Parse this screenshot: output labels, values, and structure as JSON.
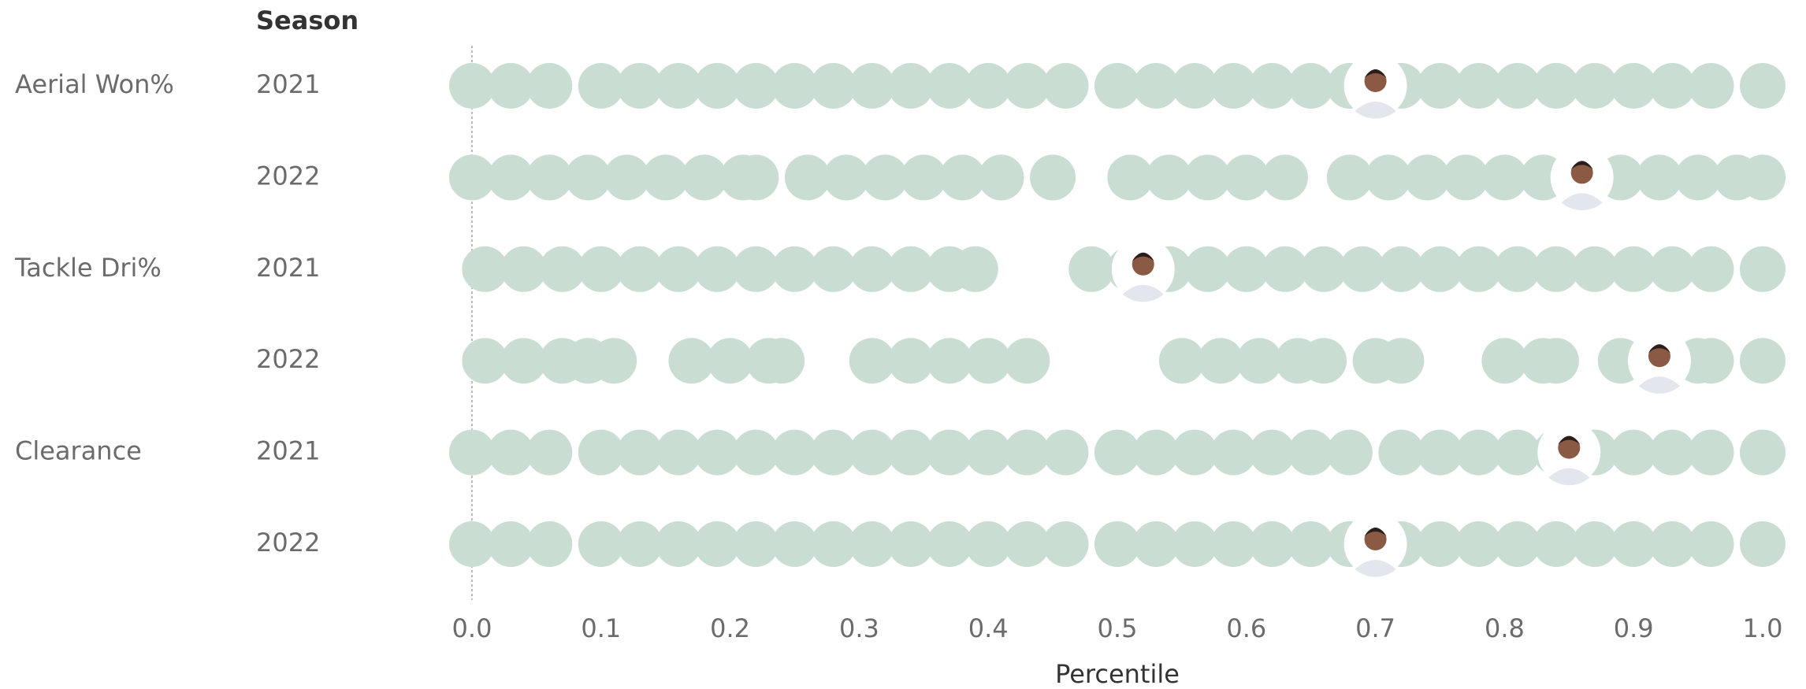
{
  "chart_data": {
    "type": "strip",
    "row_header": "Season",
    "xlabel": "Percentile",
    "dot_color": "#c9ddd2",
    "xlim": [
      0,
      1
    ],
    "xticks": [
      {
        "value": 0,
        "label": "0.0"
      },
      0.1,
      0.2,
      0.3,
      0.4,
      0.5,
      0.6,
      0.7,
      0.8,
      0.9,
      {
        "value": 1,
        "label": "1.0"
      }
    ],
    "groups": [
      {
        "name": "Aerial Won%",
        "seasons": [
          {
            "season": "2021",
            "player": 0.7,
            "values": [
              0,
              0.03,
              0.06,
              0.1,
              0.13,
              0.16,
              0.19,
              0.22,
              0.25,
              0.28,
              0.31,
              0.34,
              0.37,
              0.4,
              0.43,
              0.46,
              0.5,
              0.53,
              0.56,
              0.59,
              0.62,
              0.65,
              0.68,
              0.72,
              0.75,
              0.78,
              0.81,
              0.84,
              0.87,
              0.9,
              0.93,
              0.96,
              1.0
            ]
          },
          {
            "season": "2022",
            "player": 0.86,
            "values": [
              0,
              0.03,
              0.06,
              0.09,
              0.12,
              0.15,
              0.18,
              0.21,
              0.22,
              0.26,
              0.29,
              0.32,
              0.35,
              0.38,
              0.41,
              0.45,
              0.51,
              0.54,
              0.57,
              0.6,
              0.63,
              0.68,
              0.71,
              0.74,
              0.77,
              0.8,
              0.83,
              0.86,
              0.89,
              0.92,
              0.95,
              0.98,
              1.0
            ]
          }
        ]
      },
      {
        "name": "Tackle Dri%",
        "seasons": [
          {
            "season": "2021",
            "player": 0.52,
            "values": [
              0.01,
              0.04,
              0.07,
              0.1,
              0.13,
              0.16,
              0.19,
              0.22,
              0.25,
              0.28,
              0.31,
              0.34,
              0.37,
              0.39,
              0.48,
              0.51,
              0.54,
              0.57,
              0.6,
              0.63,
              0.66,
              0.69,
              0.72,
              0.75,
              0.78,
              0.81,
              0.84,
              0.87,
              0.9,
              0.93,
              0.96,
              1.0
            ]
          },
          {
            "season": "2022",
            "player": 0.92,
            "values": [
              0.01,
              0.04,
              0.07,
              0.09,
              0.11,
              0.17,
              0.2,
              0.23,
              0.24,
              0.31,
              0.34,
              0.37,
              0.4,
              0.43,
              0.55,
              0.58,
              0.61,
              0.64,
              0.66,
              0.7,
              0.72,
              0.8,
              0.83,
              0.84,
              0.89,
              0.92,
              0.95,
              0.96,
              1.0
            ]
          }
        ]
      },
      {
        "name": "Clearance",
        "seasons": [
          {
            "season": "2021",
            "player": 0.85,
            "values": [
              0,
              0.03,
              0.06,
              0.1,
              0.13,
              0.16,
              0.19,
              0.22,
              0.25,
              0.28,
              0.31,
              0.34,
              0.37,
              0.4,
              0.43,
              0.46,
              0.5,
              0.53,
              0.56,
              0.59,
              0.62,
              0.65,
              0.68,
              0.72,
              0.75,
              0.78,
              0.81,
              0.84,
              0.87,
              0.9,
              0.93,
              0.96,
              1.0
            ]
          },
          {
            "season": "2022",
            "player": 0.7,
            "values": [
              0,
              0.03,
              0.06,
              0.1,
              0.13,
              0.16,
              0.19,
              0.22,
              0.25,
              0.28,
              0.31,
              0.34,
              0.37,
              0.4,
              0.43,
              0.46,
              0.5,
              0.53,
              0.56,
              0.59,
              0.62,
              0.65,
              0.68,
              0.72,
              0.75,
              0.78,
              0.81,
              0.84,
              0.87,
              0.9,
              0.93,
              0.96,
              1.0
            ]
          }
        ]
      }
    ]
  }
}
